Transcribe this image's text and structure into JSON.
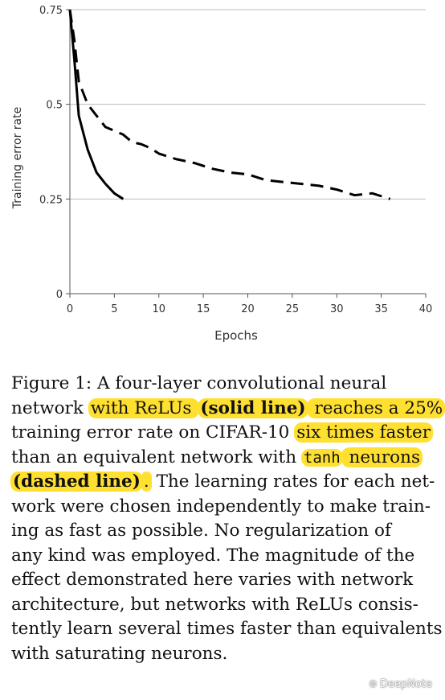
{
  "chart_data": {
    "type": "line",
    "xlabel": "Epochs",
    "ylabel": "Training error rate",
    "xlim": [
      0,
      40
    ],
    "ylim": [
      0,
      0.75
    ],
    "x_ticks": [
      "0",
      "5",
      "10",
      "15",
      "20",
      "25",
      "30",
      "35",
      "40"
    ],
    "y_ticks": [
      "0",
      "0.25",
      "0.5",
      "0.75"
    ],
    "grid": "horizontal",
    "series": [
      {
        "style": "solid",
        "x": [
          0,
          0.5,
          1,
          2,
          3,
          4,
          5,
          6
        ],
        "y": [
          0.75,
          0.62,
          0.47,
          0.38,
          0.32,
          0.29,
          0.265,
          0.25
        ]
      },
      {
        "style": "dashed",
        "x": [
          0,
          0.5,
          1,
          2,
          3,
          4,
          5,
          6,
          7,
          8,
          9,
          10,
          12,
          14,
          16,
          18,
          20,
          22,
          24,
          26,
          28,
          30,
          32,
          34,
          36
        ],
        "y": [
          0.75,
          0.67,
          0.56,
          0.5,
          0.47,
          0.44,
          0.43,
          0.42,
          0.4,
          0.395,
          0.385,
          0.37,
          0.355,
          0.345,
          0.33,
          0.32,
          0.315,
          0.3,
          0.295,
          0.29,
          0.285,
          0.275,
          0.26,
          0.265,
          0.25
        ]
      }
    ]
  },
  "caption": {
    "lines": [
      [
        {
          "t": "Figure 1:  A four-layer convolutional neural"
        }
      ],
      [
        {
          "t": "network "
        },
        {
          "t": "with ReLUs ",
          "hl": true
        },
        {
          "t": "(solid line)",
          "hl": true,
          "b": true
        },
        {
          "t": " reaches a 25%",
          "hl": true
        }
      ],
      [
        {
          "t": "training error rate on CIFAR-10 "
        },
        {
          "t": "six times faster",
          "hl": true
        }
      ],
      [
        {
          "t": "than an equivalent network with "
        },
        {
          "t": "tanh",
          "hl": true,
          "mono": true
        },
        {
          "t": " neurons",
          "hl": true
        }
      ],
      [
        {
          "t": "(dashed line)",
          "hl": true,
          "b": true
        },
        {
          "t": ".",
          "hl": true
        },
        {
          "t": " The learning rates for each net-"
        }
      ],
      [
        {
          "t": "work were chosen independently to make train-"
        }
      ],
      [
        {
          "t": "ing as fast as possible.  No regularization of"
        }
      ],
      [
        {
          "t": "any kind was employed. The magnitude of the"
        }
      ],
      [
        {
          "t": "effect demonstrated here varies with network"
        }
      ],
      [
        {
          "t": "architecture, but networks with ReLUs consis-"
        }
      ],
      [
        {
          "t": "tently learn several times faster than equivalents"
        }
      ],
      [
        {
          "t": "with saturating neurons."
        }
      ]
    ]
  },
  "watermark": {
    "icon": "wechat-icon",
    "text": "DeepNote"
  }
}
